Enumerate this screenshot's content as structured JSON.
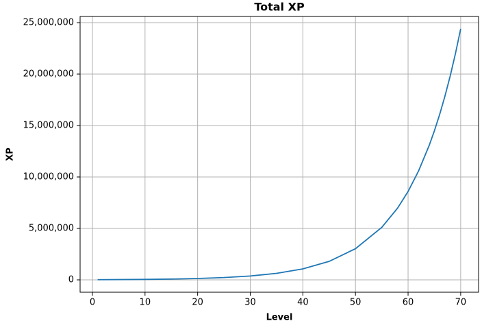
{
  "chart_data": {
    "type": "line",
    "title": "Total XP",
    "xlabel": "Level",
    "ylabel": "XP",
    "x": [
      1,
      5,
      10,
      15,
      20,
      25,
      30,
      35,
      40,
      45,
      50,
      55,
      58,
      60,
      62,
      64,
      65,
      66,
      67,
      68,
      69,
      70
    ],
    "series": [
      {
        "color": "#1f77b4",
        "values": [
          18200,
          27600,
          46600,
          78500,
          132000,
          223000,
          375000,
          633000,
          1066000,
          1800000,
          3030000,
          5100000,
          6970000,
          8590000,
          10590000,
          13050000,
          14480000,
          16070000,
          17840000,
          19800000,
          21980000,
          24400000
        ]
      }
    ],
    "xlim": [
      -2.34,
      73.4
    ],
    "xticks": [
      0,
      10,
      20,
      30,
      40,
      50,
      60,
      70
    ],
    "ylim": [
      -1200000,
      25600000
    ],
    "yticks": [
      0,
      {
        "value": 5000000,
        "label": "5,000,000"
      },
      {
        "value": 10000000,
        "label": "10,000,000"
      },
      {
        "value": 15000000,
        "label": "15,000,000"
      },
      {
        "value": 20000000,
        "label": "20,000,000"
      },
      {
        "value": 25000000,
        "label": "25,000,000"
      }
    ],
    "grid": true
  }
}
